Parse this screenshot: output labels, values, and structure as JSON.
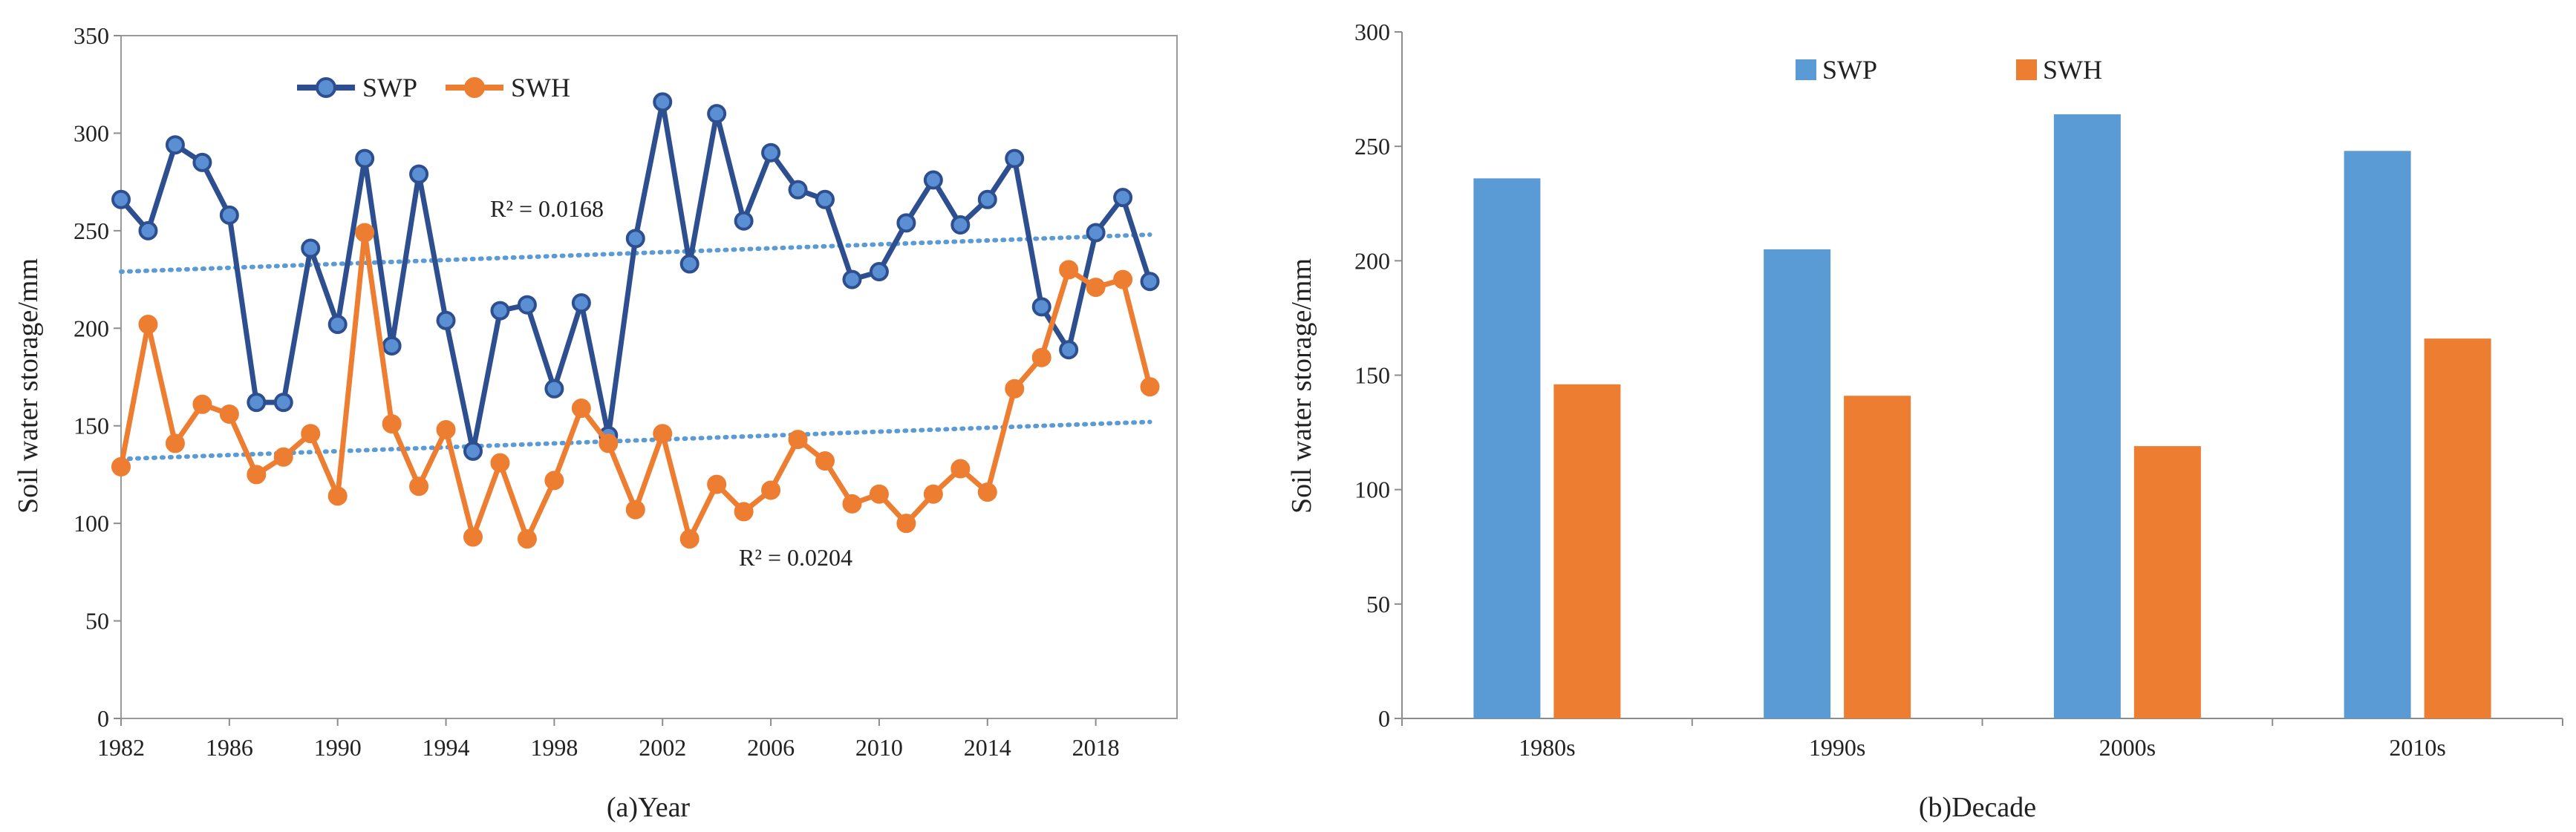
{
  "chart_data": [
    {
      "type": "line",
      "ylabel": "Soil water storage/mm",
      "xlabel": "(a)Year",
      "ylim": [
        0,
        350
      ],
      "xlim": [
        1982,
        2021
      ],
      "yticks": [
        0,
        50,
        100,
        150,
        200,
        250,
        300,
        350
      ],
      "xticks": [
        1982,
        1986,
        1990,
        1994,
        1998,
        2002,
        2006,
        2010,
        2014,
        2018
      ],
      "legend": "top-left",
      "grid": false,
      "x": [
        1982,
        1983,
        1984,
        1985,
        1986,
        1987,
        1988,
        1989,
        1990,
        1991,
        1992,
        1993,
        1994,
        1995,
        1996,
        1997,
        1998,
        1999,
        2000,
        2001,
        2002,
        2003,
        2004,
        2005,
        2006,
        2007,
        2008,
        2009,
        2010,
        2011,
        2012,
        2013,
        2014,
        2015,
        2016,
        2017,
        2018,
        2019,
        2020
      ],
      "series": [
        {
          "name": "SWP",
          "color": "#2e4f8f",
          "marker_color": "#5b8fd4",
          "values": [
            266,
            250,
            294,
            285,
            258,
            162,
            162,
            241,
            202,
            287,
            191,
            279,
            204,
            137,
            209,
            212,
            169,
            213,
            145,
            246,
            316,
            233,
            310,
            255,
            290,
            271,
            266,
            225,
            229,
            254,
            276,
            253,
            266,
            287,
            211,
            189,
            249,
            267,
            224
          ],
          "trend_start": 229,
          "trend_end": 248,
          "r2_label": "R² = 0.0168"
        },
        {
          "name": "SWH",
          "color": "#ed7d31",
          "marker_color": "#ed7d31",
          "values": [
            129,
            202,
            141,
            161,
            156,
            125,
            134,
            146,
            114,
            249,
            151,
            119,
            148,
            93,
            131,
            92,
            122,
            159,
            141,
            107,
            146,
            92,
            120,
            106,
            117,
            143,
            132,
            110,
            115,
            100,
            115,
            128,
            116,
            169,
            185,
            230,
            221,
            225,
            170
          ],
          "trend_start": 133,
          "trend_end": 152,
          "r2_label": "R² = 0.0204"
        }
      ]
    },
    {
      "type": "bar",
      "ylabel": "Soil water storage/mm",
      "xlabel": "(b)Decade",
      "ylim": [
        0,
        300
      ],
      "yticks": [
        0,
        50,
        100,
        150,
        200,
        250,
        300
      ],
      "categories": [
        "1980s",
        "1990s",
        "2000s",
        "2010s"
      ],
      "legend": "top-center",
      "grid": false,
      "series": [
        {
          "name": "SWP",
          "color": "#5b9bd5",
          "values": [
            236,
            205,
            264,
            248
          ]
        },
        {
          "name": "SWH",
          "color": "#ed7d31",
          "values": [
            146,
            141,
            119,
            166
          ]
        }
      ]
    }
  ]
}
